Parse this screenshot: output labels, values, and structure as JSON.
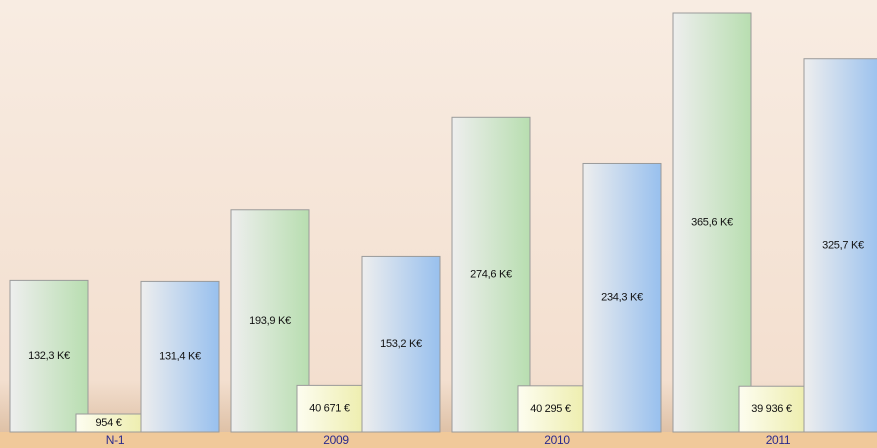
{
  "chart_data": {
    "type": "bar",
    "categories": [
      "N-1",
      "2009",
      "2010",
      "2011"
    ],
    "series": [
      {
        "color": "#b8deb0",
        "values": [
          132300,
          193900,
          274600,
          365600
        ],
        "value_labels": [
          "132,3 K€",
          "193,9 K€",
          "274,6 K€",
          "365,6 K€"
        ]
      },
      {
        "color": "#eeeeb0",
        "values": [
          954,
          40671,
          40295,
          39936
        ],
        "value_labels": [
          "954 €",
          "40 671 €",
          "40 295 €",
          "39 936 €"
        ]
      },
      {
        "color": "#98c0ee",
        "values": [
          131400,
          153200,
          234300,
          325700
        ],
        "value_labels": [
          "131,4 K€",
          "153,2 K€",
          "234,3 K€",
          "325,7 K€"
        ]
      }
    ]
  }
}
